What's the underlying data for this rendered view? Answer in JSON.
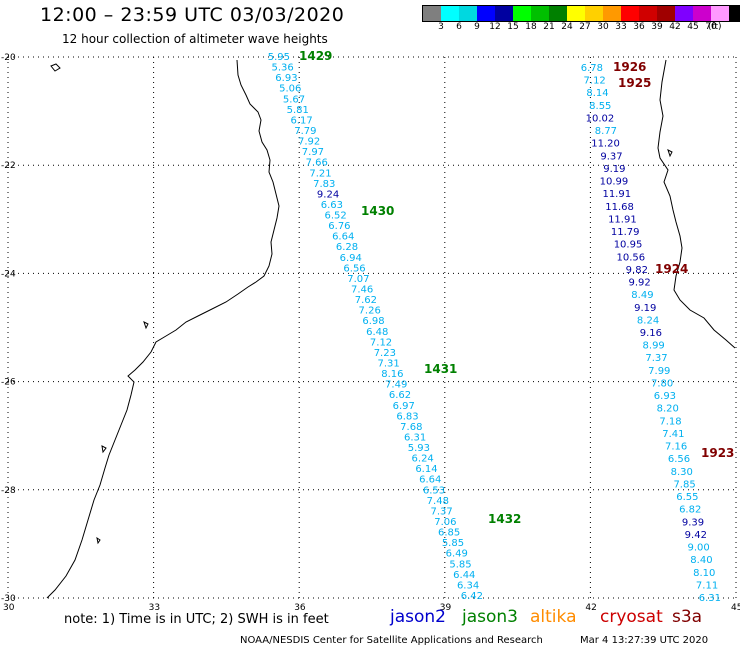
{
  "title": "12:00 – 23:59 UTC 03/03/2020",
  "subtitle": "12 hour collection of altimeter wave heights",
  "legend": {
    "colors": [
      "#7f7f7f",
      "#00ffff",
      "#00d8e0",
      "#0000ff",
      "#0000a0",
      "#00ff00",
      "#00c000",
      "#008000",
      "#ffff00",
      "#ffd000",
      "#ff9900",
      "#ff0000",
      "#d00000",
      "#a00000",
      "#7f00ff",
      "#cc00cc",
      "#ff99ff",
      "#000000"
    ],
    "labels": [
      "3",
      "6",
      "9",
      "12",
      "15",
      "18",
      "21",
      "24",
      "27",
      "30",
      "33",
      "36",
      "39",
      "42",
      "45",
      "70"
    ],
    "unit": "(ft)"
  },
  "axes": {
    "lat_labels": [
      "-20",
      "-22",
      "-24",
      "-26",
      "-28",
      "-30"
    ],
    "lon_labels": [
      "30",
      "33",
      "36",
      "39",
      "42",
      "45"
    ]
  },
  "colors": {
    "jason2": "#0000cc",
    "jason3": "#008000",
    "altika": "#ff8c00",
    "cryosat": "#cc0000",
    "s3a": "#800000",
    "light": "#00b0f0",
    "teal": "#20c0d0",
    "dark": "#0000a0",
    "grid": "#000000"
  },
  "tracks": [
    {
      "satellite": "jason3",
      "pass_labels": [
        "1429",
        "1430",
        "1431",
        "1432"
      ],
      "values": [
        {
          "v": "5.95",
          "c": "light"
        },
        {
          "v": "5.36",
          "c": "light"
        },
        {
          "v": "6.93",
          "c": "light"
        },
        {
          "v": "5.06",
          "c": "light"
        },
        {
          "v": "5.67",
          "c": "light"
        },
        {
          "v": "5.81",
          "c": "light"
        },
        {
          "v": "6.17",
          "c": "light"
        },
        {
          "v": "7.79",
          "c": "light"
        },
        {
          "v": "7.92",
          "c": "light"
        },
        {
          "v": "7.97",
          "c": "light"
        },
        {
          "v": "7.66",
          "c": "light"
        },
        {
          "v": "7.21",
          "c": "light"
        },
        {
          "v": "7.83",
          "c": "light"
        },
        {
          "v": "9.24",
          "c": "dark"
        },
        {
          "v": "6.63",
          "c": "light"
        },
        {
          "v": "6.52",
          "c": "light"
        },
        {
          "v": "6.76",
          "c": "light"
        },
        {
          "v": "6.64",
          "c": "light"
        },
        {
          "v": "6.28",
          "c": "light"
        },
        {
          "v": "6.94",
          "c": "light"
        },
        {
          "v": "6.56",
          "c": "light"
        },
        {
          "v": "7.07",
          "c": "light"
        },
        {
          "v": "7.46",
          "c": "light"
        },
        {
          "v": "7.62",
          "c": "light"
        },
        {
          "v": "7.26",
          "c": "light"
        },
        {
          "v": "6.98",
          "c": "light"
        },
        {
          "v": "6.48",
          "c": "light"
        },
        {
          "v": "7.12",
          "c": "light"
        },
        {
          "v": "7.23",
          "c": "light"
        },
        {
          "v": "7.31",
          "c": "light"
        },
        {
          "v": "8.16",
          "c": "light"
        },
        {
          "v": "7.49",
          "c": "light"
        },
        {
          "v": "6.62",
          "c": "light"
        },
        {
          "v": "6.97",
          "c": "light"
        },
        {
          "v": "6.83",
          "c": "light"
        },
        {
          "v": "7.68",
          "c": "light"
        },
        {
          "v": "6.31",
          "c": "light"
        },
        {
          "v": "5.93",
          "c": "light"
        },
        {
          "v": "6.24",
          "c": "light"
        },
        {
          "v": "6.14",
          "c": "light"
        },
        {
          "v": "6.64",
          "c": "light"
        },
        {
          "v": "6.53",
          "c": "light"
        },
        {
          "v": "7.48",
          "c": "light"
        },
        {
          "v": "7.37",
          "c": "light"
        },
        {
          "v": "7.06",
          "c": "light"
        },
        {
          "v": "6.85",
          "c": "light"
        },
        {
          "v": "5.85",
          "c": "light"
        },
        {
          "v": "6.49",
          "c": "light"
        },
        {
          "v": "5.85",
          "c": "light"
        },
        {
          "v": "6.44",
          "c": "light"
        },
        {
          "v": "6.34",
          "c": "light"
        },
        {
          "v": "6.42",
          "c": "light"
        }
      ]
    },
    {
      "satellite": "s3a",
      "pass_labels": [
        "1926",
        "1925",
        "1924",
        "1923"
      ],
      "values": [
        {
          "v": "6.78",
          "c": "light"
        },
        {
          "v": "7.12",
          "c": "light"
        },
        {
          "v": "8.14",
          "c": "light"
        },
        {
          "v": "8.55",
          "c": "light"
        },
        {
          "v": "10.02",
          "c": "dark"
        },
        {
          "v": "8.77",
          "c": "light"
        },
        {
          "v": "11.20",
          "c": "dark"
        },
        {
          "v": "9.37",
          "c": "dark"
        },
        {
          "v": "9.19",
          "c": "dark"
        },
        {
          "v": "10.99",
          "c": "dark"
        },
        {
          "v": "11.91",
          "c": "dark"
        },
        {
          "v": "11.68",
          "c": "dark"
        },
        {
          "v": "11.91",
          "c": "dark"
        },
        {
          "v": "11.79",
          "c": "dark"
        },
        {
          "v": "10.95",
          "c": "dark"
        },
        {
          "v": "10.56",
          "c": "dark"
        },
        {
          "v": "9.82",
          "c": "dark"
        },
        {
          "v": "9.92",
          "c": "dark"
        },
        {
          "v": "8.49",
          "c": "light"
        },
        {
          "v": "9.19",
          "c": "dark"
        },
        {
          "v": "8.24",
          "c": "light"
        },
        {
          "v": "9.16",
          "c": "dark"
        },
        {
          "v": "8.99",
          "c": "light"
        },
        {
          "v": "7.37",
          "c": "light"
        },
        {
          "v": "7.99",
          "c": "light"
        },
        {
          "v": "7.80",
          "c": "light"
        },
        {
          "v": "6.93",
          "c": "light"
        },
        {
          "v": "8.20",
          "c": "light"
        },
        {
          "v": "7.18",
          "c": "light"
        },
        {
          "v": "7.41",
          "c": "light"
        },
        {
          "v": "7.16",
          "c": "light"
        },
        {
          "v": "6.56",
          "c": "light"
        },
        {
          "v": "8.30",
          "c": "light"
        },
        {
          "v": "7.85",
          "c": "light"
        },
        {
          "v": "6.55",
          "c": "light"
        },
        {
          "v": "6.82",
          "c": "light"
        },
        {
          "v": "9.39",
          "c": "dark"
        },
        {
          "v": "9.42",
          "c": "dark"
        },
        {
          "v": "9.00",
          "c": "light"
        },
        {
          "v": "8.40",
          "c": "light"
        },
        {
          "v": "8.10",
          "c": "light"
        },
        {
          "v": "7.11",
          "c": "light"
        },
        {
          "v": "6.31",
          "c": "light"
        }
      ]
    }
  ],
  "note": "note:  1) Time is in UTC;  2) SWH is in feet",
  "satellites": [
    "jason2",
    "jason3",
    "altika",
    "cryosat",
    "s3a"
  ],
  "credit": "NOAA/NESDIS Center for Satellite Applications and Research",
  "timestamp": "Mar  4 13:27:39 UTC 2020"
}
